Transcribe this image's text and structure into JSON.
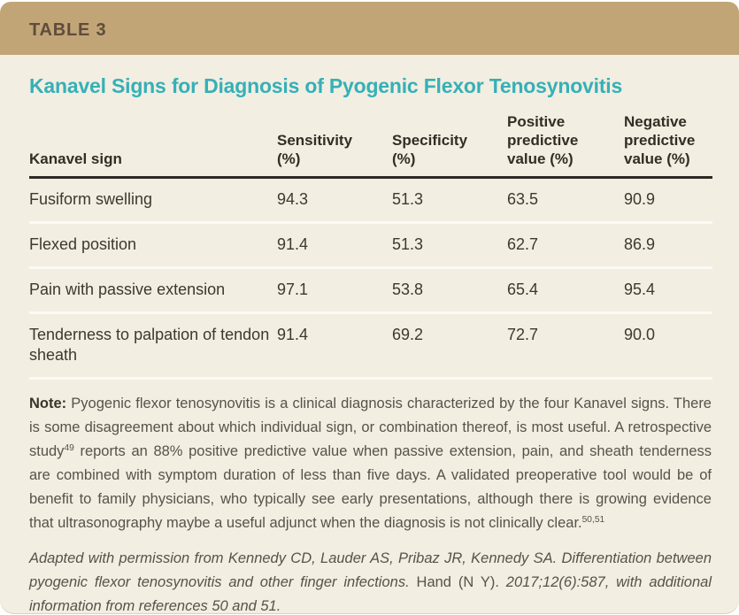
{
  "header": {
    "table_label": "TABLE 3"
  },
  "title": "Kanavel Signs for Diagnosis of Pyogenic Flexor Tenosynovitis",
  "table": {
    "columns": [
      "Kanavel sign",
      "Sensitivity\n(%)",
      "Specificity\n(%)",
      "Positive\npredictive\nvalue (%)",
      "Negative\npredictive\nvalue (%)"
    ],
    "rows": [
      {
        "sign": "Fusiform swelling",
        "sensitivity": "94.3",
        "specificity": "51.3",
        "ppv": "63.5",
        "npv": "90.9"
      },
      {
        "sign": "Flexed position",
        "sensitivity": "91.4",
        "specificity": "51.3",
        "ppv": "62.7",
        "npv": "86.9"
      },
      {
        "sign": "Pain with passive extension",
        "sensitivity": "97.1",
        "specificity": "53.8",
        "ppv": "65.4",
        "npv": "95.4"
      },
      {
        "sign": "Tenderness to palpation of tendon sheath",
        "sensitivity": "91.4",
        "specificity": "69.2",
        "ppv": "72.7",
        "npv": "90.0"
      }
    ]
  },
  "note": {
    "segments": [
      {
        "t": "Note:",
        "b": true,
        "name": "note-label"
      },
      {
        "t": " Pyogenic flexor tenosynovitis is a clinical diagnosis characterized by the four Kanavel signs. There is some disagreement about which individual sign, or combination thereof, is most useful. A retrospective study"
      },
      {
        "t": "49",
        "sup": true,
        "name": "reference-superscript"
      },
      {
        "t": " reports an 88% positive predictive value when passive extension, pain, and sheath tenderness are combined with symptom duration of less than five days. A validated preoperative tool would be of benefit to family physicians, who typically see early presentations, although there is growing evidence that ultrasonography maybe a useful adjunct when the diagnosis is not clinically clear."
      },
      {
        "t": "50,51",
        "sup": true,
        "name": "reference-superscript"
      }
    ]
  },
  "citation": {
    "segments": [
      {
        "t": "Adapted with permission from Kennedy CD, Lauder AS, Pribaz JR, Kennedy SA. Differentiation between pyogenic flexor tenosynovitis and other finger infections. "
      },
      {
        "t": "Hand (N Y). ",
        "i": false,
        "name": "journal-name"
      },
      {
        "t": "2017;12(6):587, with additional information from references 50 and 51."
      }
    ]
  },
  "colors": {
    "header_tan": "#c2a577",
    "header_text_brown": "#5f4c3b",
    "title_teal": "#35b0b8",
    "card_cream": "#f2eee1",
    "header_rule_dark": "#2d2923",
    "row_divider_white": "#fbfaf5",
    "body_text": "#3e382f",
    "note_text": "#57524b"
  },
  "chart_data": {
    "type": "table",
    "title": "Kanavel Signs for Diagnosis of Pyogenic Flexor Tenosynovitis",
    "columns": [
      "Kanavel sign",
      "Sensitivity (%)",
      "Specificity (%)",
      "Positive predictive value (%)",
      "Negative predictive value (%)"
    ],
    "rows": [
      [
        "Fusiform swelling",
        94.3,
        51.3,
        63.5,
        90.9
      ],
      [
        "Flexed position",
        91.4,
        51.3,
        62.7,
        86.9
      ],
      [
        "Pain with passive extension",
        97.1,
        53.8,
        65.4,
        95.4
      ],
      [
        "Tenderness to palpation of tendon sheath",
        91.4,
        69.2,
        72.7,
        90.0
      ]
    ]
  }
}
